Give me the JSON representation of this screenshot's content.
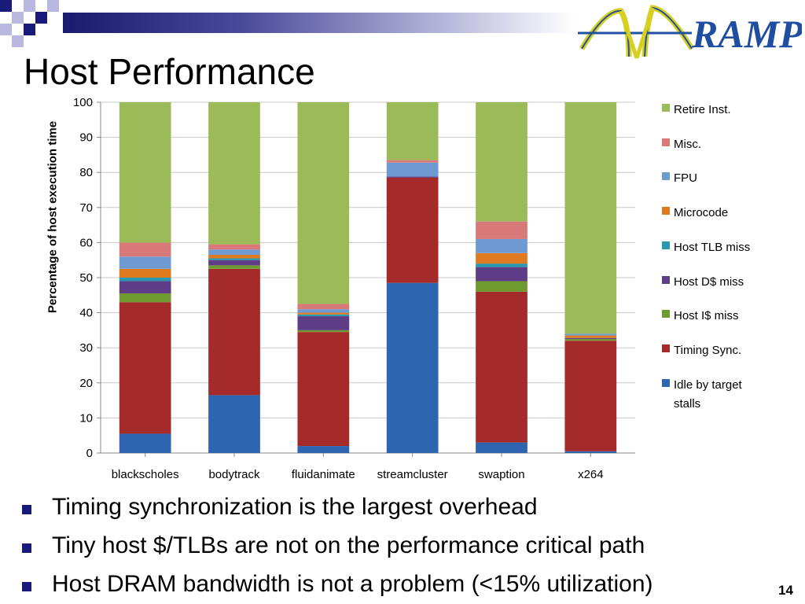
{
  "slide": {
    "title": "Host Performance",
    "page_number": "14",
    "logo_text": "RAMP",
    "bullets": [
      "Timing synchronization is the largest overhead",
      "Tiny host $/TLBs are not on the performance critical path",
      "Host DRAM bandwidth is not a problem (<15% utilization)"
    ]
  },
  "chart_data": {
    "type": "bar",
    "stacked": true,
    "title": "",
    "xlabel": "",
    "ylabel": "Percentage of host execution time",
    "ylim": [
      0,
      100
    ],
    "yticks": [
      0,
      10,
      20,
      30,
      40,
      50,
      60,
      70,
      80,
      90,
      100
    ],
    "grid": true,
    "legend_position": "right",
    "categories": [
      "blackscholes",
      "bodytrack",
      "fluidanimate",
      "streamcluster",
      "swaption",
      "x264"
    ],
    "series": [
      {
        "name": "Idle by target stalls",
        "color": "#2e64b0",
        "values": [
          5.5,
          16.5,
          2,
          48.5,
          3,
          0.5
        ]
      },
      {
        "name": "Timing Sync.",
        "color": "#a52a2a",
        "values": [
          37.5,
          36,
          32.5,
          30,
          43,
          31.5
        ]
      },
      {
        "name": "Host I$ miss",
        "color": "#6e9a30",
        "values": [
          2.5,
          1,
          0.5,
          0,
          3,
          0.5
        ]
      },
      {
        "name": "Host D$ miss",
        "color": "#5e3d86",
        "values": [
          3.5,
          1.5,
          4,
          0.3,
          4,
          0.3
        ]
      },
      {
        "name": "Host TLB miss",
        "color": "#2a98b0",
        "values": [
          1,
          0.5,
          0.5,
          0,
          1,
          0
        ]
      },
      {
        "name": "Microcode",
        "color": "#e07a20",
        "values": [
          2.5,
          1,
          0.5,
          0,
          3,
          0.7
        ]
      },
      {
        "name": "FPU",
        "color": "#6e9ad2",
        "values": [
          3.5,
          1.5,
          1,
          4,
          4,
          0.5
        ]
      },
      {
        "name": "Misc.",
        "color": "#d97878",
        "values": [
          4,
          1.5,
          1.5,
          0.7,
          5,
          0
        ]
      },
      {
        "name": "Retire Inst.",
        "color": "#9bbb59",
        "values": [
          40,
          40.5,
          57.5,
          16.5,
          34,
          66
        ]
      }
    ]
  }
}
